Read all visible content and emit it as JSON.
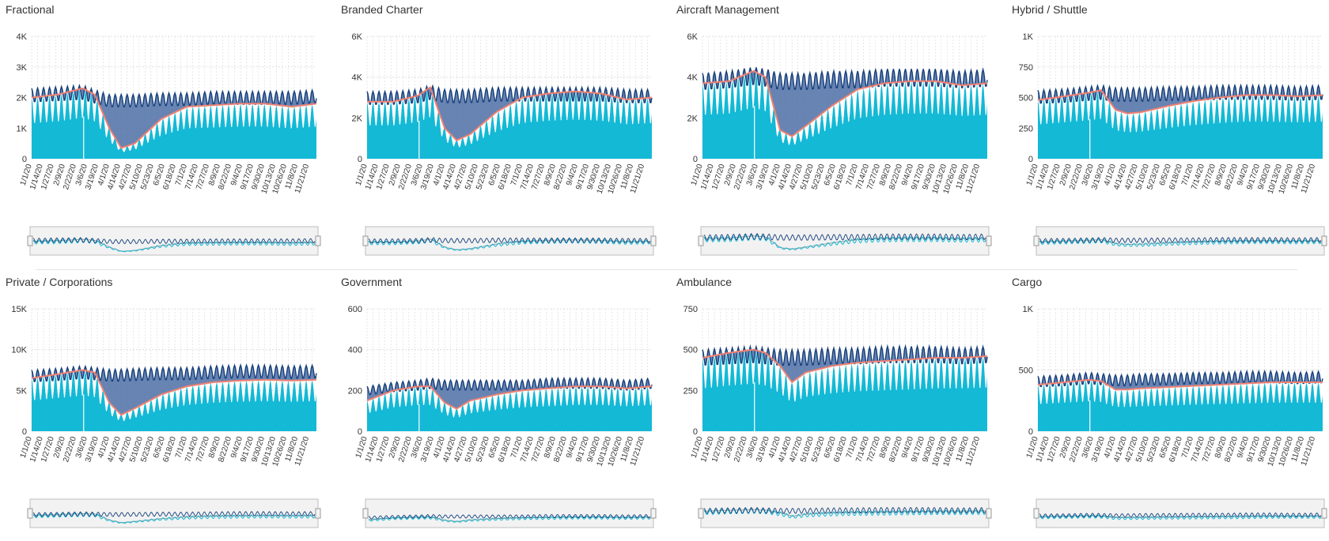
{
  "colors": {
    "area": "#14b9d6",
    "dark": "#163f7a",
    "band": "#4e6ea6",
    "trend": "#f08273",
    "navigator_bg": "#f2f2f2",
    "grid": "#d8d8d8"
  },
  "x_tick_labels": [
    "1/1/20",
    "1/14/20",
    "1/27/20",
    "2/9/20",
    "2/22/20",
    "3/6/20",
    "3/19/20",
    "4/1/20",
    "4/14/20",
    "4/27/20",
    "5/10/20",
    "5/23/20",
    "6/5/20",
    "6/18/20",
    "7/1/20",
    "7/14/20",
    "7/27/20",
    "8/9/20",
    "8/22/20",
    "9/4/20",
    "9/17/20",
    "9/30/20",
    "10/13/20",
    "10/26/20",
    "11/8/20",
    "11/21/20"
  ],
  "chart_data": [
    {
      "type": "area",
      "title": "Fractional",
      "x_range": [
        "1/1/20",
        "11/30/20"
      ],
      "ylim": [
        0,
        4000
      ],
      "y_ticks": [
        0,
        1000,
        2000,
        3000,
        4000
      ],
      "y_tick_labels": [
        "0",
        "1K",
        "2K",
        "3K",
        "4K"
      ],
      "grid": true,
      "x": [
        "1/1/20",
        "2/1/20",
        "3/1/20",
        "3/15/20",
        "4/1/20",
        "4/15/20",
        "5/1/20",
        "6/1/20",
        "7/1/20",
        "8/1/20",
        "9/1/20",
        "10/1/20",
        "11/1/20",
        "11/30/20"
      ],
      "series": [
        {
          "values": [
            2000,
            2100,
            2300,
            2100,
            1000,
            350,
            500,
            1300,
            1700,
            1750,
            1800,
            1800,
            1700,
            1800
          ]
        },
        {
          "values": [
            2300,
            2350,
            2400,
            2250,
            2100,
            2100,
            2100,
            2150,
            2150,
            2200,
            2200,
            2200,
            2200,
            2250
          ]
        }
      ]
    },
    {
      "type": "area",
      "title": "Branded Charter",
      "x_range": [
        "1/1/20",
        "11/30/20"
      ],
      "ylim": [
        0,
        6000
      ],
      "y_ticks": [
        0,
        2000,
        4000,
        6000
      ],
      "y_tick_labels": [
        "0",
        "2K",
        "4K",
        "6K"
      ],
      "grid": true,
      "x": [
        "1/1/20",
        "2/1/20",
        "3/1/20",
        "3/15/20",
        "4/1/20",
        "4/15/20",
        "5/1/20",
        "6/1/20",
        "7/1/20",
        "8/1/20",
        "9/1/20",
        "10/1/20",
        "11/1/20",
        "11/30/20"
      ],
      "series": [
        {
          "values": [
            2800,
            2800,
            3100,
            3500,
            1500,
            900,
            1200,
            2300,
            3000,
            3200,
            3300,
            3200,
            2900,
            3000
          ]
        },
        {
          "values": [
            3300,
            3300,
            3400,
            3600,
            3400,
            3400,
            3400,
            3500,
            3500,
            3500,
            3500,
            3500,
            3400,
            3400
          ]
        }
      ]
    },
    {
      "type": "area",
      "title": "Aircraft Management",
      "x_range": [
        "1/1/20",
        "11/30/20"
      ],
      "ylim": [
        0,
        6000
      ],
      "y_ticks": [
        0,
        2000,
        4000,
        6000
      ],
      "y_tick_labels": [
        "0",
        "2K",
        "4K",
        "6K"
      ],
      "grid": true,
      "x": [
        "1/1/20",
        "2/1/20",
        "3/1/20",
        "3/15/20",
        "4/1/20",
        "4/15/20",
        "5/1/20",
        "6/1/20",
        "7/1/20",
        "8/1/20",
        "9/1/20",
        "10/1/20",
        "11/1/20",
        "11/30/20"
      ],
      "series": [
        {
          "values": [
            3700,
            3800,
            4300,
            4000,
            1400,
            1100,
            1600,
            2600,
            3400,
            3700,
            3800,
            3800,
            3600,
            3700
          ]
        },
        {
          "values": [
            4200,
            4300,
            4500,
            4400,
            4200,
            4200,
            4200,
            4300,
            4300,
            4400,
            4400,
            4400,
            4300,
            4400
          ]
        }
      ]
    },
    {
      "type": "area",
      "title": "Hybrid / Shuttle",
      "x_range": [
        "1/1/20",
        "11/30/20"
      ],
      "ylim": [
        0,
        1000
      ],
      "y_ticks": [
        0,
        250,
        500,
        750,
        1000
      ],
      "y_tick_labels": [
        "0",
        "250",
        "500",
        "750",
        "1K"
      ],
      "grid": true,
      "x": [
        "1/1/20",
        "2/1/20",
        "3/1/20",
        "3/15/20",
        "4/1/20",
        "4/15/20",
        "5/1/20",
        "6/1/20",
        "7/1/20",
        "8/1/20",
        "9/1/20",
        "10/1/20",
        "11/1/20",
        "11/30/20"
      ],
      "series": [
        {
          "values": [
            480,
            510,
            540,
            560,
            400,
            370,
            380,
            430,
            470,
            500,
            520,
            520,
            510,
            520
          ]
        },
        {
          "values": [
            560,
            570,
            590,
            600,
            580,
            580,
            580,
            590,
            590,
            600,
            600,
            600,
            590,
            600
          ]
        }
      ]
    },
    {
      "type": "area",
      "title": "Private / Corporations",
      "x_range": [
        "1/1/20",
        "11/30/20"
      ],
      "ylim": [
        0,
        15000
      ],
      "y_ticks": [
        0,
        5000,
        10000,
        15000
      ],
      "y_tick_labels": [
        "0",
        "5K",
        "10K",
        "15K"
      ],
      "grid": true,
      "x": [
        "1/1/20",
        "2/1/20",
        "3/1/20",
        "3/15/20",
        "4/1/20",
        "4/15/20",
        "5/1/20",
        "6/1/20",
        "7/1/20",
        "8/1/20",
        "9/1/20",
        "10/1/20",
        "11/1/20",
        "11/30/20"
      ],
      "series": [
        {
          "values": [
            6500,
            7000,
            7500,
            7200,
            3500,
            2000,
            2800,
            4500,
            5500,
            6000,
            6200,
            6300,
            6200,
            6300
          ]
        },
        {
          "values": [
            7500,
            7700,
            8000,
            7800,
            7600,
            7600,
            7700,
            7800,
            7800,
            8000,
            8100,
            8100,
            8000,
            8100
          ]
        }
      ]
    },
    {
      "type": "area",
      "title": "Government",
      "x_range": [
        "1/1/20",
        "11/30/20"
      ],
      "ylim": [
        0,
        600
      ],
      "y_ticks": [
        0,
        200,
        400,
        600
      ],
      "y_tick_labels": [
        "0",
        "200",
        "400",
        "600"
      ],
      "grid": true,
      "x": [
        "1/1/20",
        "2/1/20",
        "3/1/20",
        "3/15/20",
        "4/1/20",
        "4/15/20",
        "5/1/20",
        "6/1/20",
        "7/1/20",
        "8/1/20",
        "9/1/20",
        "10/1/20",
        "11/1/20",
        "11/30/20"
      ],
      "series": [
        {
          "values": [
            150,
            200,
            220,
            220,
            140,
            110,
            150,
            180,
            200,
            210,
            220,
            220,
            210,
            220
          ]
        },
        {
          "values": [
            220,
            240,
            250,
            260,
            250,
            250,
            250,
            250,
            250,
            260,
            260,
            260,
            250,
            260
          ]
        }
      ]
    },
    {
      "type": "area",
      "title": "Ambulance",
      "x_range": [
        "1/1/20",
        "11/30/20"
      ],
      "ylim": [
        0,
        750
      ],
      "y_ticks": [
        0,
        250,
        500,
        750
      ],
      "y_tick_labels": [
        "0",
        "250",
        "500",
        "750"
      ],
      "grid": true,
      "x": [
        "1/1/20",
        "2/1/20",
        "3/1/20",
        "3/15/20",
        "4/1/20",
        "4/15/20",
        "5/1/20",
        "6/1/20",
        "7/1/20",
        "8/1/20",
        "9/1/20",
        "10/1/20",
        "11/1/20",
        "11/30/20"
      ],
      "series": [
        {
          "values": [
            450,
            480,
            500,
            480,
            400,
            300,
            360,
            400,
            420,
            430,
            440,
            450,
            450,
            460
          ]
        },
        {
          "values": [
            500,
            510,
            520,
            510,
            500,
            500,
            500,
            510,
            510,
            520,
            520,
            520,
            510,
            520
          ]
        }
      ]
    },
    {
      "type": "area",
      "title": "Cargo",
      "x_range": [
        "1/1/20",
        "11/30/20"
      ],
      "ylim": [
        0,
        1000
      ],
      "y_ticks": [
        0,
        500,
        1000
      ],
      "y_tick_labels": [
        "0",
        "500",
        "1K"
      ],
      "grid": true,
      "x": [
        "1/1/20",
        "2/1/20",
        "3/1/20",
        "3/15/20",
        "4/1/20",
        "4/15/20",
        "5/1/20",
        "6/1/20",
        "7/1/20",
        "8/1/20",
        "9/1/20",
        "10/1/20",
        "11/1/20",
        "11/30/20"
      ],
      "series": [
        {
          "values": [
            380,
            400,
            420,
            410,
            340,
            340,
            350,
            360,
            370,
            380,
            390,
            400,
            400,
            400
          ]
        },
        {
          "values": [
            450,
            460,
            480,
            470,
            460,
            460,
            470,
            470,
            480,
            480,
            490,
            490,
            480,
            490
          ]
        }
      ]
    }
  ]
}
